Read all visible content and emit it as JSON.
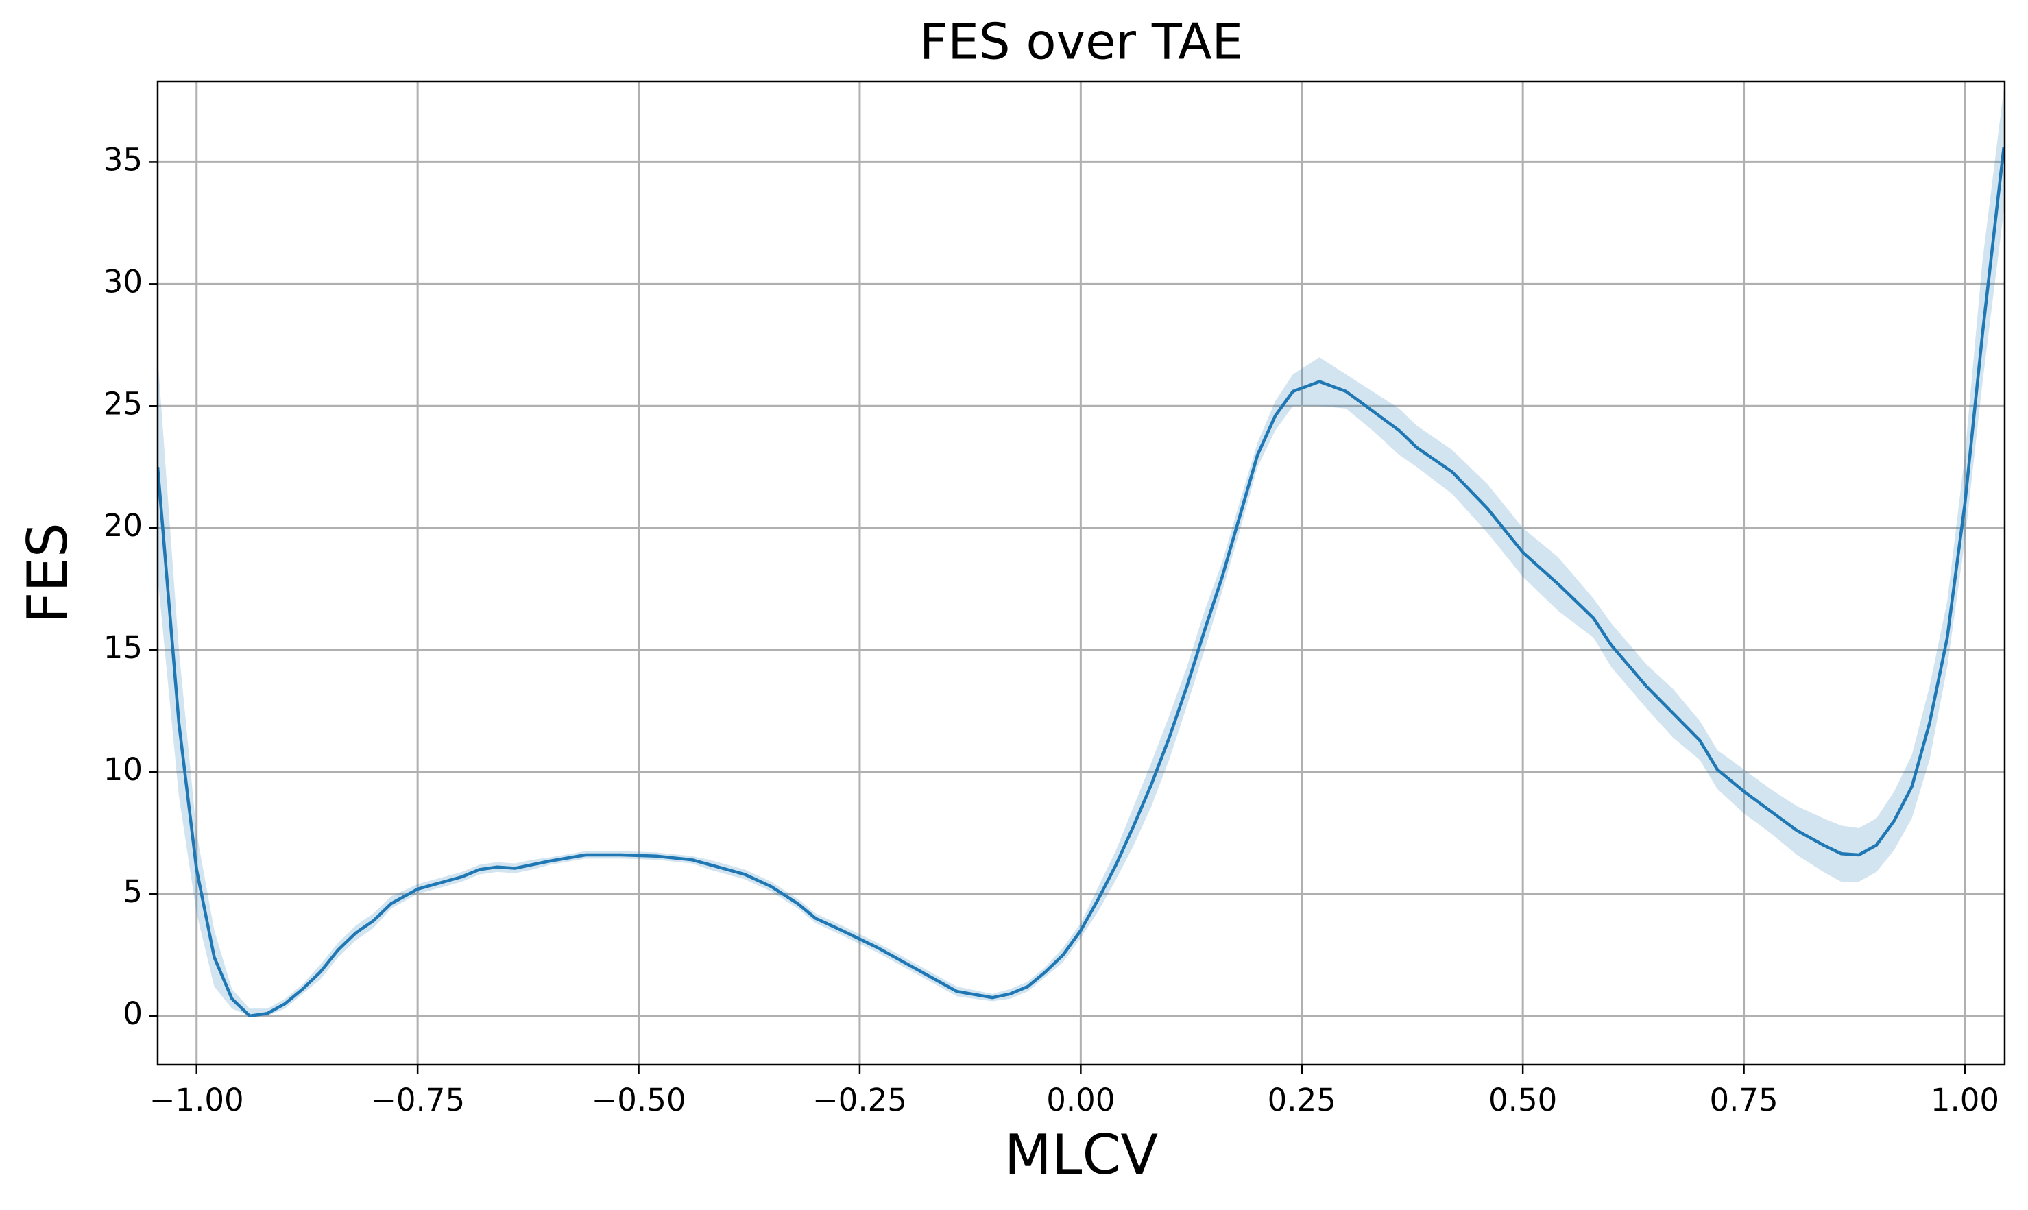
{
  "chart_data": {
    "type": "line",
    "title": "FES over TAE",
    "xlabel": "MLCV",
    "ylabel": "FES",
    "grid": true,
    "xlim": [
      -1.044,
      1.045
    ],
    "ylim": [
      -2.0,
      38.3
    ],
    "xticks": [
      {
        "value": -1.0,
        "label": "−1.00"
      },
      {
        "value": -0.75,
        "label": "−0.75"
      },
      {
        "value": -0.5,
        "label": "−0.50"
      },
      {
        "value": -0.25,
        "label": "−0.25"
      },
      {
        "value": 0,
        "label": "0.00"
      },
      {
        "value": 0.25,
        "label": "0.25"
      },
      {
        "value": 0.5,
        "label": "0.50"
      },
      {
        "value": 0.75,
        "label": "0.75"
      },
      {
        "value": 1,
        "label": "1.00"
      }
    ],
    "yticks": [
      0,
      5,
      10,
      15,
      20,
      25,
      30,
      35
    ],
    "x": [
      -1.044,
      -1.02,
      -1.0,
      -0.98,
      -0.96,
      -0.94,
      -0.92,
      -0.9,
      -0.88,
      -0.86,
      -0.84,
      -0.82,
      -0.8,
      -0.78,
      -0.75,
      -0.72,
      -0.7,
      -0.68,
      -0.66,
      -0.64,
      -0.62,
      -0.6,
      -0.56,
      -0.52,
      -0.48,
      -0.44,
      -0.42,
      -0.38,
      -0.35,
      -0.32,
      -0.3,
      -0.27,
      -0.23,
      -0.2,
      -0.16,
      -0.14,
      -0.1,
      -0.08,
      -0.06,
      -0.04,
      -0.02,
      0.0,
      0.02,
      0.04,
      0.06,
      0.08,
      0.1,
      0.12,
      0.14,
      0.16,
      0.18,
      0.2,
      0.22,
      0.24,
      0.27,
      0.3,
      0.33,
      0.36,
      0.38,
      0.42,
      0.46,
      0.5,
      0.54,
      0.58,
      0.6,
      0.64,
      0.67,
      0.7,
      0.72,
      0.75,
      0.78,
      0.81,
      0.84,
      0.86,
      0.88,
      0.9,
      0.92,
      0.94,
      0.96,
      0.98,
      1.0,
      1.02,
      1.044
    ],
    "series": [
      {
        "color": "#1f77b4",
        "band_alpha": 0.2,
        "values": [
          22.5,
          12,
          6,
          2.4,
          0.7,
          0,
          0.1,
          0.5,
          1.1,
          1.8,
          2.7,
          3.4,
          3.9,
          4.6,
          5.2,
          5.5,
          5.7,
          6.0,
          6.1,
          6.05,
          6.2,
          6.35,
          6.6,
          6.6,
          6.55,
          6.4,
          6.2,
          5.8,
          5.3,
          4.6,
          4.0,
          3.5,
          2.8,
          2.2,
          1.4,
          1.0,
          0.75,
          0.9,
          1.2,
          1.8,
          2.5,
          3.5,
          4.8,
          6.2,
          7.8,
          9.5,
          11.4,
          13.5,
          15.8,
          18.0,
          20.5,
          23.0,
          24.6,
          25.6,
          26.0,
          25.6,
          24.8,
          24.0,
          23.3,
          22.3,
          20.8,
          19.0,
          17.7,
          16.3,
          15.2,
          13.5,
          12.4,
          11.3,
          10.1,
          9.2,
          8.4,
          7.6,
          7.0,
          6.65,
          6.6,
          7.0,
          8.0,
          9.4,
          12.0,
          15.5,
          21.0,
          28.0,
          35.6
        ],
        "lower": [
          18,
          9,
          4.2,
          1.2,
          0.3,
          0,
          0,
          0.3,
          0.9,
          1.5,
          2.4,
          3.1,
          3.6,
          4.4,
          5.0,
          5.3,
          5.5,
          5.8,
          5.9,
          5.85,
          6.0,
          6.2,
          6.45,
          6.45,
          6.4,
          6.25,
          6.0,
          5.6,
          5.1,
          4.4,
          3.8,
          3.3,
          2.6,
          2.0,
          1.2,
          0.8,
          0.6,
          0.7,
          1.0,
          1.6,
          2.2,
          3.2,
          4.3,
          5.6,
          7.0,
          8.6,
          10.5,
          12.7,
          15.0,
          17.4,
          19.9,
          22.5,
          24.0,
          25.0,
          25.0,
          24.9,
          24.0,
          23.0,
          22.5,
          21.4,
          19.8,
          18.0,
          16.6,
          15.5,
          14.3,
          12.6,
          11.4,
          10.5,
          9.3,
          8.3,
          7.5,
          6.6,
          5.9,
          5.5,
          5.5,
          5.9,
          6.8,
          8.1,
          10.5,
          14.3,
          19.5,
          26.0,
          33.0
        ],
        "upper": [
          27,
          15,
          7.5,
          3.5,
          1.1,
          0.3,
          0.3,
          0.7,
          1.3,
          2.1,
          3.0,
          3.7,
          4.2,
          4.9,
          5.4,
          5.7,
          5.9,
          6.2,
          6.3,
          6.25,
          6.4,
          6.5,
          6.75,
          6.75,
          6.7,
          6.55,
          6.4,
          6.0,
          5.5,
          4.8,
          4.2,
          3.7,
          3.0,
          2.4,
          1.6,
          1.2,
          0.9,
          1.1,
          1.4,
          2.0,
          2.8,
          3.8,
          5.3,
          6.8,
          8.6,
          10.4,
          12.3,
          14.3,
          16.6,
          18.6,
          21.1,
          23.5,
          25.2,
          26.3,
          27.0,
          26.3,
          25.6,
          24.9,
          24.2,
          23.2,
          21.8,
          20.0,
          18.8,
          17.1,
          16.1,
          14.4,
          13.4,
          12.1,
          10.9,
          10.1,
          9.3,
          8.6,
          8.1,
          7.8,
          7.7,
          8.1,
          9.2,
          10.7,
          13.5,
          17.0,
          23.0,
          31.0,
          38.0
        ]
      }
    ]
  }
}
